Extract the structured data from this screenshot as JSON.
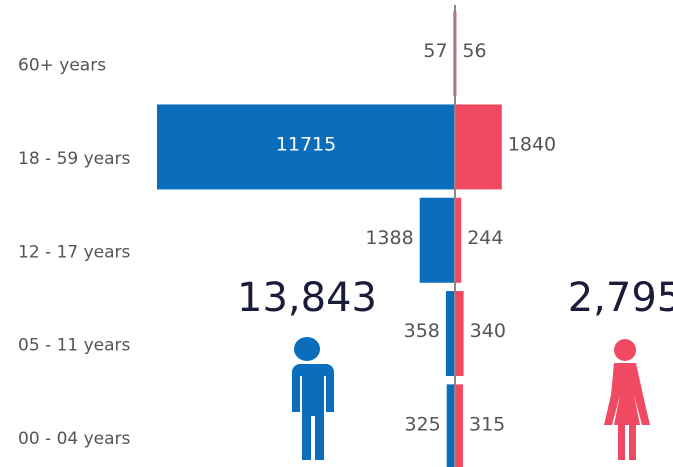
{
  "chart_data": {
    "type": "butterfly",
    "categories": [
      "60+ years",
      "18 - 59 years",
      "12 - 17 years",
      "05 - 11 years",
      "00 - 04 years"
    ],
    "series": [
      {
        "color": "#0a6ebd",
        "values": [
          57,
          11715,
          1388,
          358,
          325
        ]
      },
      {
        "color": "#f04a63",
        "values": [
          56,
          1840,
          244,
          340,
          315
        ]
      }
    ],
    "totals": [
      {
        "value": 13843,
        "label": "13,843"
      },
      {
        "value": 2795,
        "label": "2,795"
      }
    ]
  }
}
